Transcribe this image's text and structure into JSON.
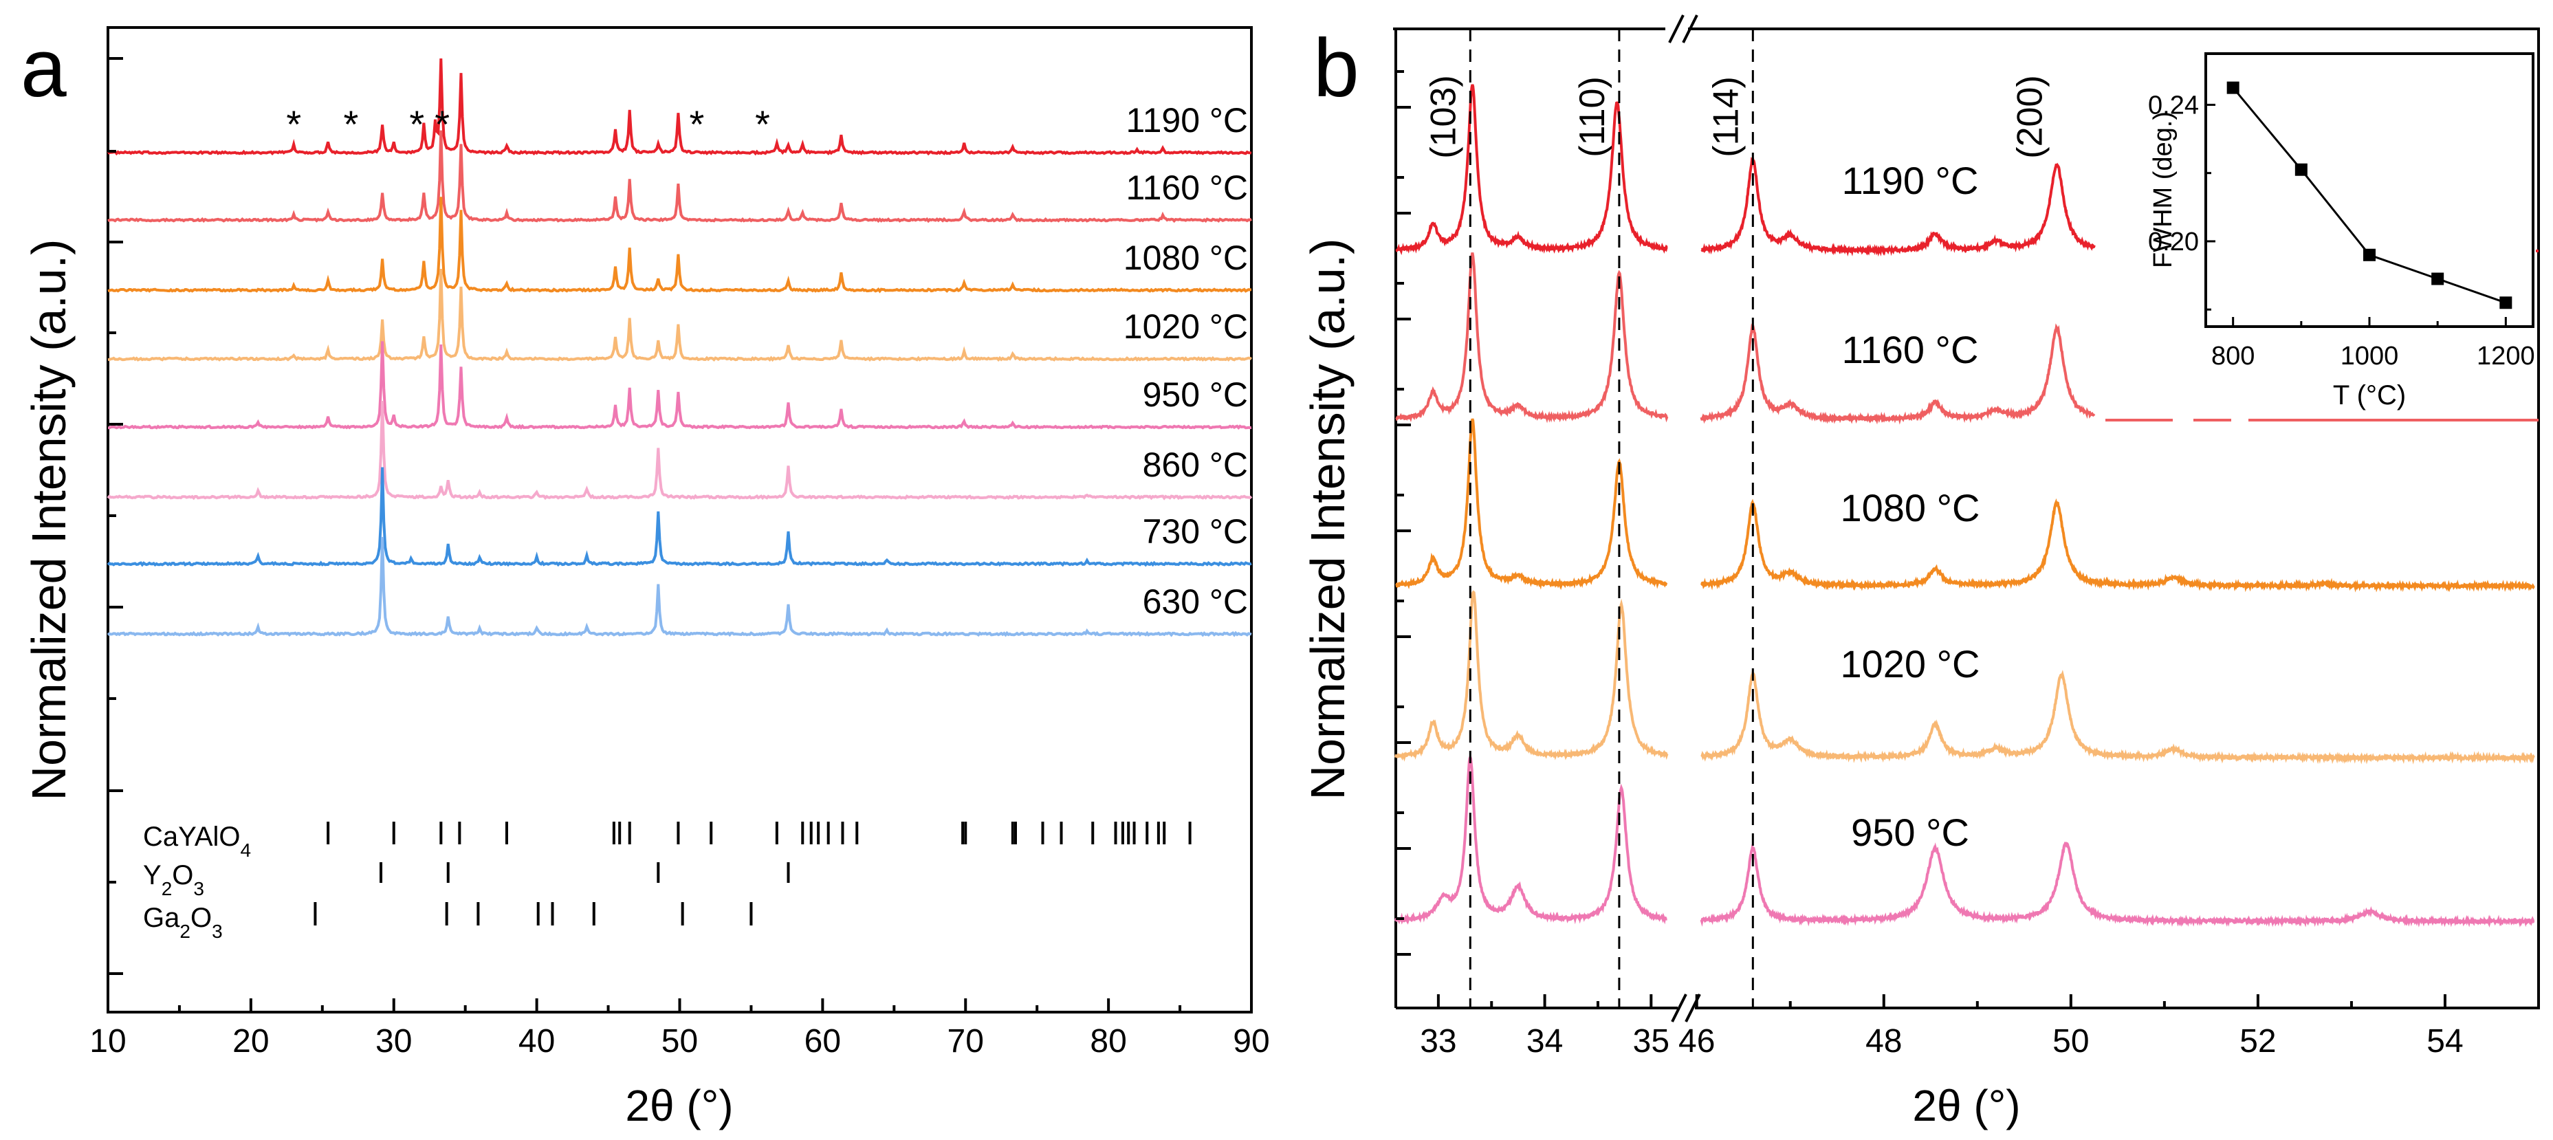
{
  "chart_data": [
    {
      "type": "line",
      "panel": "a",
      "xlabel": "2θ (°)",
      "ylabel": "Normalized Intensity (a.u.)",
      "xlim": [
        10,
        90
      ],
      "xticks": [
        10,
        20,
        30,
        40,
        50,
        60,
        70,
        80,
        90
      ],
      "series": [
        {
          "name": "1190 °C",
          "color": "#e8212b"
        },
        {
          "name": "1160 °C",
          "color": "#ef5f61"
        },
        {
          "name": "1080 °C",
          "color": "#f38a20"
        },
        {
          "name": "1020 °C",
          "color": "#f8b874"
        },
        {
          "name": "950 °C",
          "color": "#ef78b2"
        },
        {
          "name": "860 °C",
          "color": "#f5a9cc"
        },
        {
          "name": "730 °C",
          "color": "#3b8fe0"
        },
        {
          "name": "630 °C",
          "color": "#8ab8ef"
        }
      ],
      "asterisk_peaks": [
        23.0,
        27.0,
        32.0,
        33.0,
        51.2,
        55.8
      ],
      "reference_patterns": [
        {
          "name": "CaYAlO4",
          "positions": [
            25.4,
            30.0,
            33.3,
            34.6,
            37.9,
            45.4,
            45.8,
            46.5,
            49.9,
            52.2,
            56.8,
            58.6,
            59.2,
            59.7,
            60.4,
            61.4,
            62.4,
            69.8,
            70.0,
            73.3,
            73.5,
            75.4,
            76.7,
            78.9,
            80.5,
            81.0,
            81.4,
            81.8,
            82.7,
            83.5,
            83.9,
            85.7
          ]
        },
        {
          "name": "Y2O3",
          "positions": [
            29.1,
            33.8,
            48.5,
            57.6
          ]
        },
        {
          "name": "Ga2O3",
          "positions": [
            24.5,
            33.7,
            35.9,
            40.1,
            41.1,
            44.0,
            50.2,
            55.0
          ]
        }
      ],
      "reference_labels": [
        {
          "main": "CaYAlO",
          "sub": "4",
          "after": ""
        },
        {
          "main": "Y",
          "sub": "2",
          "after": "O"
        },
        {
          "main": "Ga",
          "sub": "2",
          "after": "O"
        }
      ],
      "reference_label_tail_sub": "3"
    },
    {
      "type": "line",
      "panel": "b",
      "xlabel": "2θ (°)",
      "ylabel": "Normalized Intensity (a.u.)",
      "broken_x_axis": true,
      "segments": [
        {
          "xlim": [
            32.6,
            35.25
          ],
          "xticks": [
            33,
            34,
            35
          ]
        },
        {
          "xlim": [
            45.98,
            55
          ],
          "xticks": [
            46,
            48,
            50,
            52,
            54
          ]
        }
      ],
      "series": [
        {
          "name": "1190 °C",
          "color": "#e8212b"
        },
        {
          "name": "1160 °C",
          "color": "#ef5f61"
        },
        {
          "name": "1080 °C",
          "color": "#f38a20"
        },
        {
          "name": "1020 °C",
          "color": "#f8b874"
        },
        {
          "name": "950 °C",
          "color": "#ef78b2"
        }
      ],
      "dashed_reference_lines": [
        33.3,
        34.7,
        46.6
      ],
      "peak_labels": [
        {
          "label": "(103)",
          "x": 33.3
        },
        {
          "label": "(110)",
          "x": 34.7
        },
        {
          "label": "(114)",
          "x": 46.6
        },
        {
          "label": "(200)",
          "x": 49.85
        }
      ]
    },
    {
      "type": "scatter",
      "panel": "b-inset",
      "xlabel": "T (°C)",
      "ylabel": "FWHM (deg.)",
      "xlim": [
        760,
        1240
      ],
      "ylim": [
        0.175,
        0.255
      ],
      "xticks": [
        800,
        1000,
        1200
      ],
      "yticks": [
        0.2,
        0.24
      ],
      "ytick_labels": [
        "0.20",
        "0.24"
      ],
      "x": [
        800,
        900,
        1000,
        1100,
        1200
      ],
      "y": [
        0.245,
        0.221,
        0.196,
        0.189,
        0.182
      ]
    }
  ],
  "panel_letters": {
    "a": "a",
    "b": "b"
  }
}
